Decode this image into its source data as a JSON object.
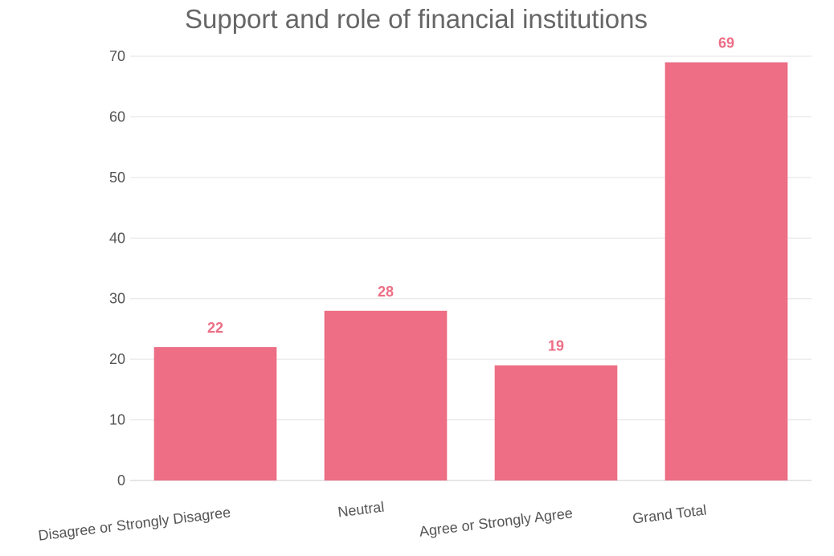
{
  "chart_data": {
    "type": "bar",
    "title": "Support and role of financial institutions",
    "xlabel": "",
    "ylabel": "",
    "categories": [
      "Disagree or Strongly Disagree",
      "Neutral",
      "Agree or Strongly Agree",
      "Grand Total"
    ],
    "values": [
      22,
      28,
      19,
      69
    ],
    "ylim": [
      0,
      70
    ],
    "yticks": [
      0,
      10,
      20,
      30,
      40,
      50,
      60,
      70
    ],
    "grid": true,
    "data_labels": true,
    "colors": {
      "bar": "#ed6e85",
      "label": "#ed6e85"
    }
  }
}
